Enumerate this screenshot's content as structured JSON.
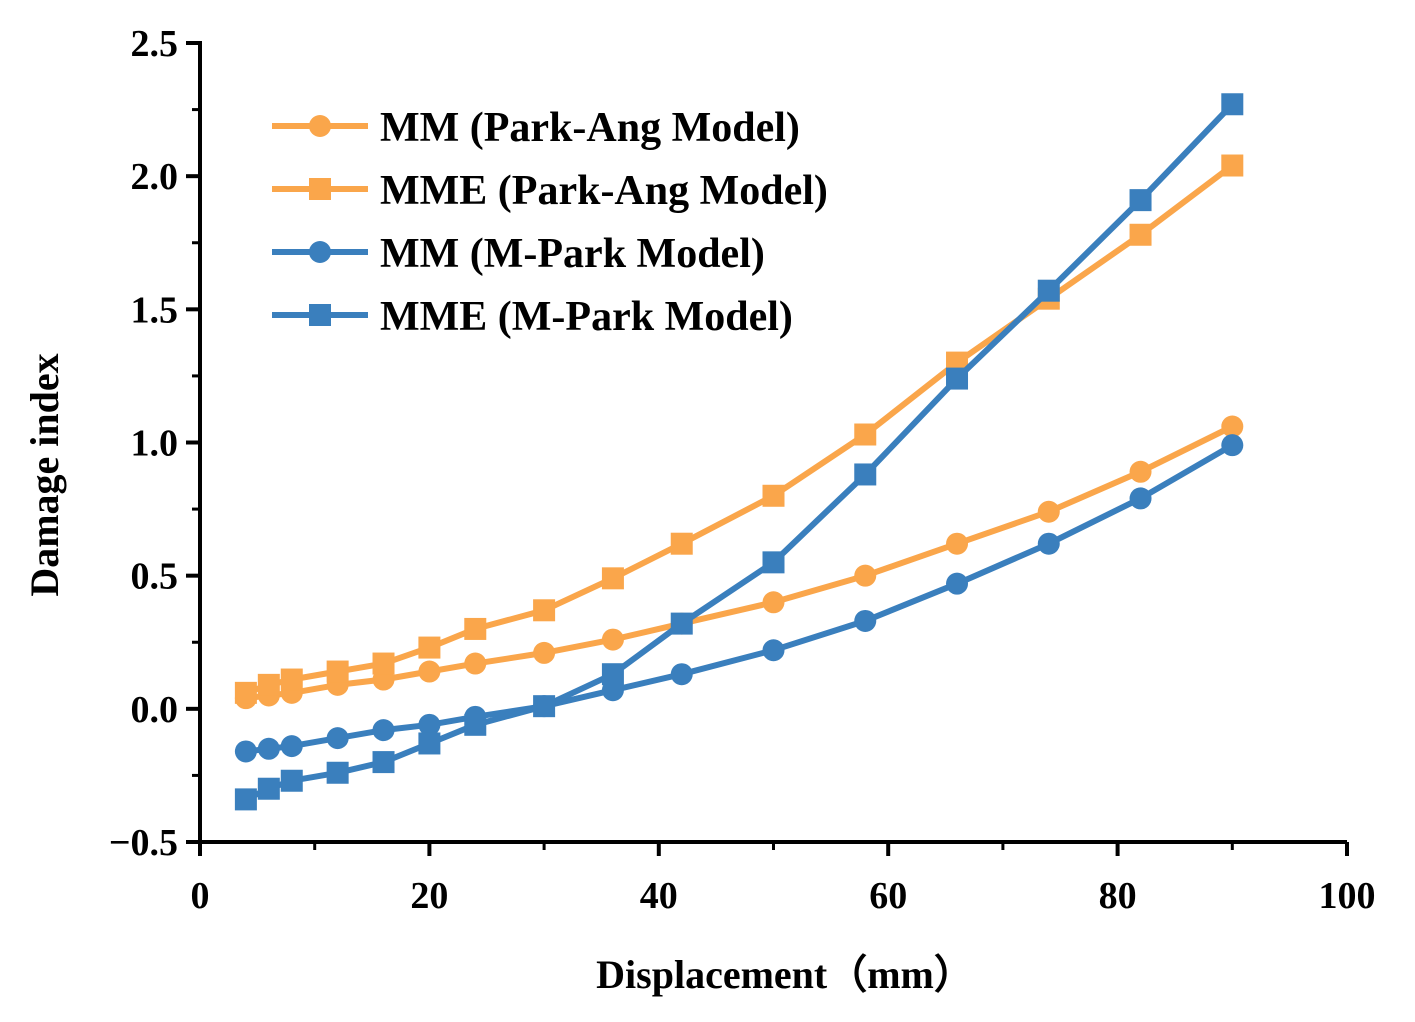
{
  "chart_data": {
    "type": "line",
    "title": "",
    "xlabel": "Displacement（mm）",
    "ylabel": "Damage index",
    "xlim": [
      0,
      100
    ],
    "ylim": [
      -0.5,
      2.5
    ],
    "xticks": [
      0,
      20,
      40,
      60,
      80,
      100
    ],
    "xtick_labels": [
      "0",
      "20",
      "40",
      "60",
      "80",
      "100"
    ],
    "yticks": [
      -0.5,
      0.0,
      0.5,
      1.0,
      1.5,
      2.0,
      2.5
    ],
    "ytick_labels": [
      "−0.5",
      "0.0",
      "0.5",
      "1.0",
      "1.5",
      "2.0",
      "2.5"
    ],
    "grid": false,
    "legend_position": "top-left",
    "x": [
      4,
      6,
      8,
      12,
      16,
      20,
      24,
      30,
      36,
      42,
      50,
      58,
      66,
      74,
      82,
      90
    ],
    "series": [
      {
        "name": "MM (Park-Ang Model)",
        "marker": "circle",
        "color": "#FAA64B",
        "values": [
          0.04,
          0.05,
          0.06,
          0.09,
          0.11,
          0.14,
          0.17,
          0.21,
          0.26,
          0.32,
          0.4,
          0.5,
          0.62,
          0.74,
          0.89,
          1.06
        ]
      },
      {
        "name": "MME (Park-Ang Model)",
        "marker": "square",
        "color": "#FAA64B",
        "values": [
          0.06,
          0.09,
          0.11,
          0.14,
          0.17,
          0.23,
          0.3,
          0.37,
          0.49,
          0.62,
          0.8,
          1.03,
          1.3,
          1.54,
          1.78,
          2.04
        ]
      },
      {
        "name": "MM (M-Park Model)",
        "marker": "circle",
        "color": "#3A7FBD",
        "values": [
          -0.16,
          -0.15,
          -0.14,
          -0.11,
          -0.08,
          -0.06,
          -0.03,
          0.01,
          0.07,
          0.13,
          0.22,
          0.33,
          0.47,
          0.62,
          0.79,
          0.99
        ]
      },
      {
        "name": "MME (M-Park Model)",
        "marker": "square",
        "color": "#3A7FBD",
        "values": [
          -0.34,
          -0.3,
          -0.27,
          -0.24,
          -0.2,
          -0.13,
          -0.06,
          0.01,
          0.13,
          0.32,
          0.55,
          0.88,
          1.24,
          1.57,
          1.91,
          2.27
        ]
      }
    ]
  }
}
